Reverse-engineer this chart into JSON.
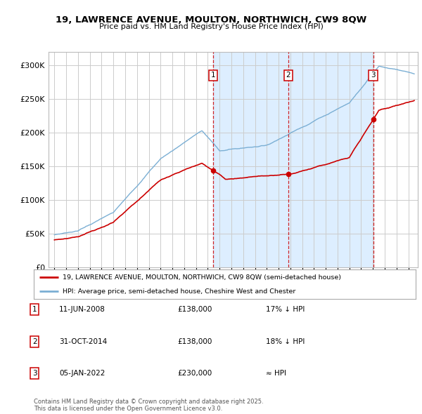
{
  "title_line1": "19, LAWRENCE AVENUE, MOULTON, NORTHWICH, CW9 8QW",
  "title_line2": "Price paid vs. HM Land Registry's House Price Index (HPI)",
  "property_label": "19, LAWRENCE AVENUE, MOULTON, NORTHWICH, CW9 8QW (semi-detached house)",
  "hpi_label": "HPI: Average price, semi-detached house, Cheshire West and Chester",
  "sale_points": [
    {
      "label": "1",
      "date_num": 2008.44,
      "price": 138000,
      "note": "11-JUN-2008",
      "price_str": "£138,000",
      "hpi_note": "17% ↓ HPI"
    },
    {
      "label": "2",
      "date_num": 2014.83,
      "price": 138000,
      "note": "31-OCT-2014",
      "price_str": "£138,000",
      "hpi_note": "18% ↓ HPI"
    },
    {
      "label": "3",
      "date_num": 2022.02,
      "price": 230000,
      "note": "05-JAN-2022",
      "price_str": "£230,000",
      "hpi_note": "≈ HPI"
    }
  ],
  "property_color": "#cc0000",
  "hpi_color": "#7bafd4",
  "background_color": "#ffffff",
  "highlight_bg_color": "#ddeeff",
  "grid_color": "#cccccc",
  "footer_text": "Contains HM Land Registry data © Crown copyright and database right 2025.\nThis data is licensed under the Open Government Licence v3.0.",
  "ylim": [
    0,
    320000
  ],
  "yticks": [
    0,
    50000,
    100000,
    150000,
    200000,
    250000,
    300000
  ],
  "xlim_start": 1994.5,
  "xlim_end": 2025.8
}
